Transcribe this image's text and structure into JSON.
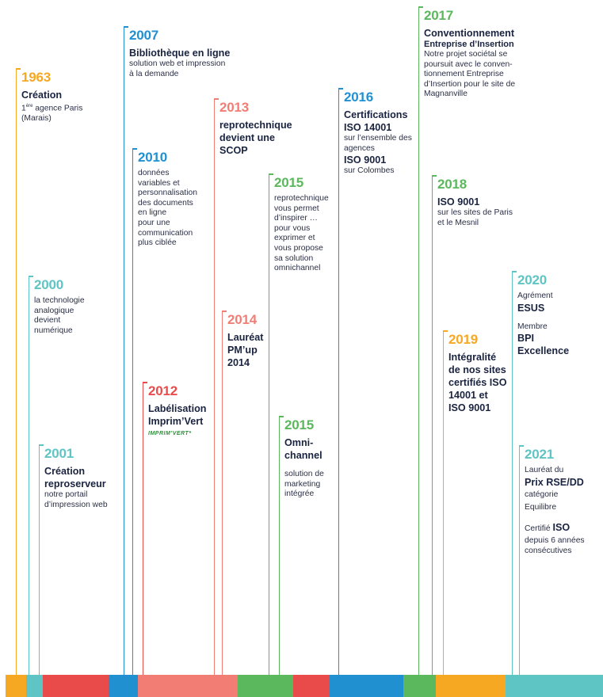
{
  "colors": {
    "orange": "#f7a823",
    "teal": "#5fc4c4",
    "red": "#e94b4b",
    "blue": "#2190d1",
    "salmon": "#f27d75",
    "green": "#5cb85c"
  },
  "entries": {
    "e1963": {
      "year": "1963",
      "l1": "Création",
      "l2a": "1",
      "l2sup": "ère",
      "l2b": " agence Paris",
      "l3": "(Marais)"
    },
    "e2000": {
      "year": "2000",
      "l1": "la technologie",
      "l2": "analogique",
      "l3": "devient",
      "l4": "numérique"
    },
    "e2001": {
      "year": "2001",
      "l1": "Création",
      "l2": "reproserveur",
      "l3": "notre portail",
      "l4": "d’impression web"
    },
    "e2007": {
      "year": "2007",
      "l1": "Bibliothèque en ligne",
      "l2": "solution web et impression",
      "l3": "à la demande"
    },
    "e2010": {
      "year": "2010",
      "l1": "données",
      "l2": "variables et",
      "l3": "personnalisation",
      "l4": "des documents",
      "l5": "en ligne",
      "l6": "pour une",
      "l7": "communication",
      "l8": "plus ciblée"
    },
    "e2012": {
      "year": "2012",
      "l1": "Labélisation",
      "l2": "Imprim’Vert",
      "logo": "IMPRIM’VERT*"
    },
    "e2013": {
      "year": "2013",
      "l1": "reprotechnique",
      "l2": "devient une",
      "l3": "SCOP"
    },
    "e2014": {
      "year": "2014",
      "l1": "Lauréat",
      "l2": "PM’up",
      "l3": "2014"
    },
    "e2015a": {
      "year": "2015",
      "l1": "reprotechnique",
      "l2": "vous permet",
      "l3": "d’inspirer …",
      "l4": "pour vous",
      "l5": "exprimer et",
      "l6": "vous propose",
      "l7": "sa solution",
      "l8": "omnichannel"
    },
    "e2015b": {
      "year": "2015",
      "l1": "Omni-",
      "l2": "channel",
      "l3": "solution de",
      "l4": "marketing",
      "l5": "intégrée"
    },
    "e2016": {
      "year": "2016",
      "l1": "Certifications",
      "l2": "ISO 14001",
      "l3": "sur l’ensemble des",
      "l4": "agences",
      "l5": "ISO 9001",
      "l6": "sur Colombes"
    },
    "e2017": {
      "year": "2017",
      "l1": "Conventionnement",
      "l2": "Entreprise d’Insertion",
      "l3": "Notre projet sociétal se",
      "l4": "poursuit avec le conven-",
      "l5": "tionnement Entreprise",
      "l6": "d’Insertion pour le site de",
      "l7": "Magnanville"
    },
    "e2018": {
      "year": "2018",
      "l1": "ISO 9001",
      "l2": "sur les sites de Paris",
      "l3": "et le Mesnil"
    },
    "e2019": {
      "year": "2019",
      "l1": "Intégralité",
      "l2": "de nos sites",
      "l3": "certifiés ISO",
      "l4": "14001 et",
      "l5": "ISO 9001"
    },
    "e2020": {
      "year": "2020",
      "l1": "Agrément",
      "l2": "ESUS",
      "l3": "Membre",
      "l4": "BPI",
      "l5": "Excellence"
    },
    "e2021": {
      "year": "2021",
      "l1": "Lauréat du",
      "l2": "Prix RSE/DD",
      "l3": "catégorie",
      "l4": "Equilibre",
      "l5a": "Certifié ",
      "l5b": "ISO",
      "l6": "depuis 6 années",
      "l7": "consécutives"
    }
  }
}
